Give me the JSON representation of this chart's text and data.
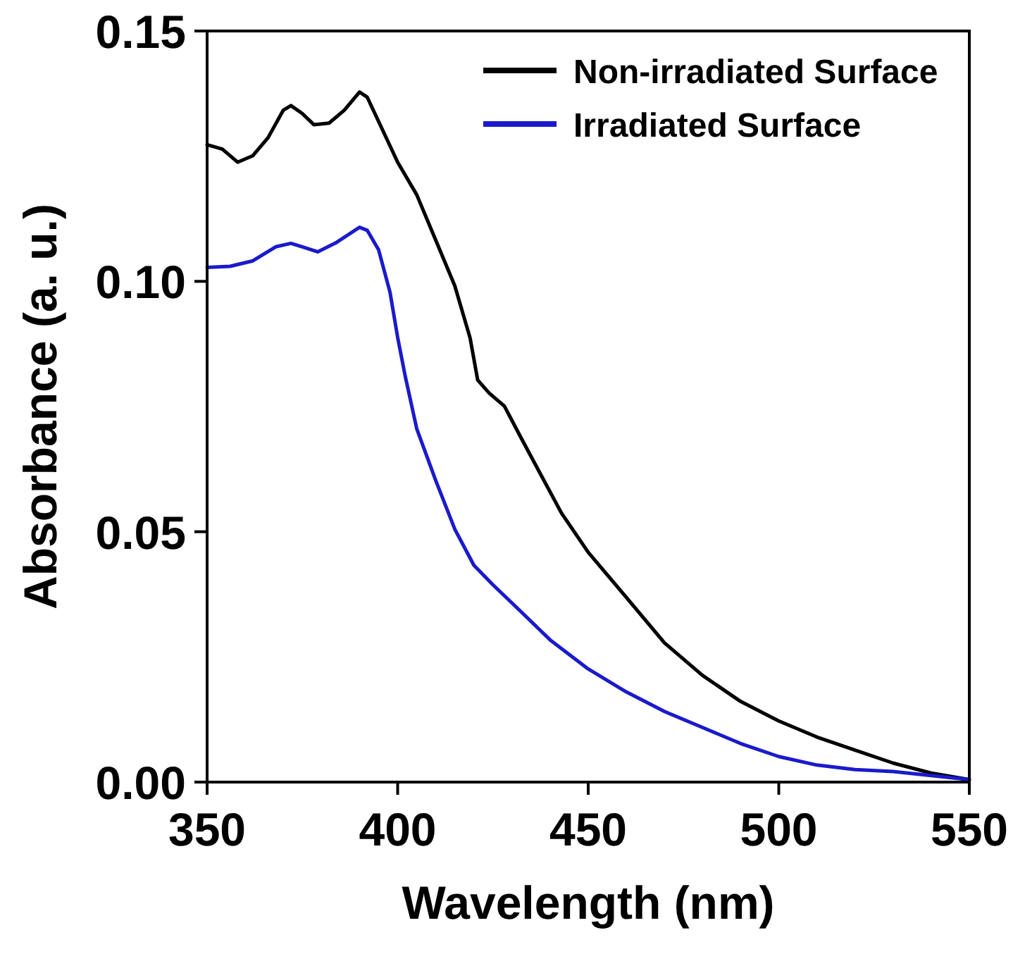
{
  "chart_data": {
    "type": "line",
    "xlabel": "Wavelength (nm)",
    "ylabel": "Absorbance (a. u.)",
    "xlim": [
      350,
      550
    ],
    "xticks": [
      350,
      400,
      450,
      500,
      550
    ],
    "ylim": [
      0,
      0.15
    ],
    "yticks": [
      {
        "value": 0,
        "label": "0.00"
      },
      {
        "value": 0.05,
        "label": "0.05"
      },
      {
        "value": 0.1,
        "label": "0.10"
      },
      {
        "value": 0.15,
        "label": "0.15"
      }
    ],
    "grid": false,
    "legend": "top right",
    "line_style": "solid",
    "marker": "none",
    "series": [
      {
        "name": "Non-irradiated Surface",
        "color": "#000000",
        "x": [
          350,
          354,
          358,
          362,
          366,
          370,
          372,
          375,
          378,
          382,
          386,
          390,
          392,
          396,
          400,
          405,
          410,
          415,
          419,
          421,
          424,
          428,
          432,
          437,
          443,
          450,
          460,
          470,
          480,
          490,
          500,
          510,
          520,
          530,
          540,
          550
        ],
        "values": [
          0.1273,
          0.1264,
          0.1238,
          0.1251,
          0.1287,
          0.1342,
          0.1351,
          0.1335,
          0.1313,
          0.1316,
          0.1342,
          0.1378,
          0.1368,
          0.1303,
          0.1238,
          0.1173,
          0.1082,
          0.0991,
          0.0887,
          0.0803,
          0.0777,
          0.0751,
          0.0693,
          0.0622,
          0.0537,
          0.0459,
          0.0369,
          0.0278,
          0.0213,
          0.0161,
          0.0122,
          0.009,
          0.0064,
          0.0038,
          0.0018,
          0.0005
        ]
      },
      {
        "name": "Irradiated Surface",
        "color": "#1a1acc",
        "x": [
          350,
          356,
          362,
          368,
          372,
          375,
          379,
          384,
          390,
          392,
          395,
          398,
          400,
          402,
          405,
          410,
          415,
          420,
          425,
          432,
          440,
          450,
          460,
          470,
          480,
          490,
          500,
          510,
          520,
          530,
          540,
          550
        ],
        "values": [
          0.1028,
          0.103,
          0.1041,
          0.1069,
          0.1076,
          0.1069,
          0.1059,
          0.1078,
          0.1108,
          0.1102,
          0.1063,
          0.0978,
          0.0888,
          0.081,
          0.0706,
          0.0602,
          0.0505,
          0.0433,
          0.0394,
          0.0343,
          0.0284,
          0.0226,
          0.018,
          0.0141,
          0.0109,
          0.0077,
          0.0051,
          0.0034,
          0.0025,
          0.0021,
          0.0013,
          0.0005
        ]
      }
    ]
  }
}
